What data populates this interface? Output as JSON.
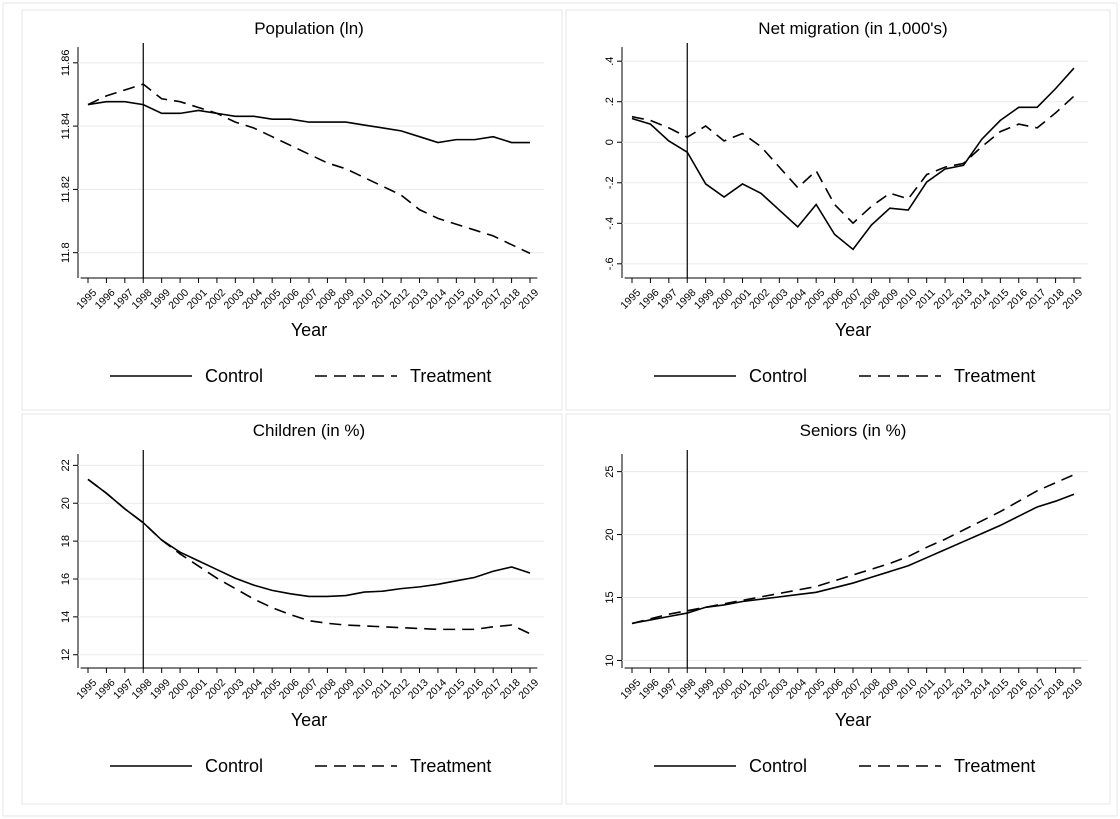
{
  "chart_data": [
    {
      "type": "line",
      "title": "Population (ln)",
      "xlabel": "Year",
      "vline": 1998,
      "x": [
        1995,
        1996,
        1997,
        1998,
        1999,
        2000,
        2001,
        2002,
        2003,
        2004,
        2005,
        2006,
        2007,
        2008,
        2009,
        2010,
        2011,
        2012,
        2013,
        2014,
        2015,
        2016,
        2017,
        2018,
        2019
      ],
      "xlim": [
        1994.6,
        2019.4
      ],
      "xticks": [
        1995,
        1996,
        1997,
        1998,
        1999,
        2000,
        2001,
        2002,
        2003,
        2004,
        2005,
        2006,
        2007,
        2008,
        2009,
        2010,
        2011,
        2012,
        2013,
        2014,
        2015,
        2016,
        2017,
        2018,
        2019
      ],
      "ylim": [
        11.792,
        11.865
      ],
      "yticks": [
        11.8,
        11.82,
        11.84,
        11.86
      ],
      "grid": true,
      "series": [
        {
          "name": "Control",
          "color": "#000000",
          "dash": "solid",
          "values": [
            11.848,
            11.849,
            11.849,
            11.848,
            11.845,
            11.845,
            11.846,
            11.845,
            11.844,
            11.844,
            11.843,
            11.843,
            11.842,
            11.842,
            11.842,
            11.841,
            11.84,
            11.839,
            11.837,
            11.835,
            11.836,
            11.836,
            11.837,
            11.835,
            11.835
          ]
        },
        {
          "name": "Treatment",
          "color": "#000000",
          "dash": "dashed",
          "values": [
            11.848,
            11.851,
            11.853,
            11.855,
            11.85,
            11.849,
            11.847,
            11.845,
            11.842,
            11.84,
            11.837,
            11.834,
            11.831,
            11.828,
            11.826,
            11.823,
            11.82,
            11.817,
            11.812,
            11.809,
            11.807,
            11.805,
            11.803,
            11.8,
            11.797
          ]
        }
      ]
    },
    {
      "type": "line",
      "title": "Net migration (in 1,000's)",
      "xlabel": "Year",
      "vline": 1998,
      "x": [
        1995,
        1996,
        1997,
        1998,
        1999,
        2000,
        2001,
        2002,
        2003,
        2004,
        2005,
        2006,
        2007,
        2008,
        2009,
        2010,
        2011,
        2012,
        2013,
        2014,
        2015,
        2016,
        2017,
        2018,
        2019
      ],
      "xlim": [
        1994.6,
        2019.4
      ],
      "xticks": [
        1995,
        1996,
        1997,
        1998,
        1999,
        2000,
        2001,
        2002,
        2003,
        2004,
        2005,
        2006,
        2007,
        2008,
        2009,
        2010,
        2011,
        2012,
        2013,
        2014,
        2015,
        2016,
        2017,
        2018,
        2019
      ],
      "ylim": [
        -0.67,
        0.47
      ],
      "yticks": [
        {
          "value": -0.6,
          "label": "-.6"
        },
        {
          "value": -0.4,
          "label": "-.4"
        },
        {
          "value": -0.2,
          "label": "-.2"
        },
        0,
        {
          "value": 0.2,
          "label": ".2"
        },
        {
          "value": 0.4,
          "label": ".4"
        }
      ],
      "grid": true,
      "series": [
        {
          "name": "Control",
          "color": "#000000",
          "dash": "solid",
          "values": [
            0.13,
            0.1,
            0.01,
            -0.05,
            -0.22,
            -0.29,
            -0.22,
            -0.27,
            -0.36,
            -0.45,
            -0.33,
            -0.49,
            -0.57,
            -0.44,
            -0.35,
            -0.36,
            -0.21,
            -0.14,
            -0.12,
            0.02,
            0.12,
            0.19,
            0.19,
            0.29,
            0.4
          ]
        },
        {
          "name": "Treatment",
          "color": "#000000",
          "dash": "dashed",
          "values": [
            0.14,
            0.12,
            0.08,
            0.03,
            0.09,
            0.01,
            0.05,
            -0.02,
            -0.13,
            -0.24,
            -0.15,
            -0.33,
            -0.43,
            -0.34,
            -0.27,
            -0.3,
            -0.17,
            -0.13,
            -0.11,
            -0.02,
            0.06,
            0.1,
            0.08,
            0.16,
            0.25
          ]
        }
      ]
    },
    {
      "type": "line",
      "title": "Children (in %)",
      "xlabel": "Year",
      "vline": 1998,
      "x": [
        1995,
        1996,
        1997,
        1998,
        1999,
        2000,
        2001,
        2002,
        2003,
        2004,
        2005,
        2006,
        2007,
        2008,
        2009,
        2010,
        2011,
        2012,
        2013,
        2014,
        2015,
        2016,
        2017,
        2018,
        2019
      ],
      "xlim": [
        1994.6,
        2019.4
      ],
      "xticks": [
        1995,
        1996,
        1997,
        1998,
        1999,
        2000,
        2001,
        2002,
        2003,
        2004,
        2005,
        2006,
        2007,
        2008,
        2009,
        2010,
        2011,
        2012,
        2013,
        2014,
        2015,
        2016,
        2017,
        2018,
        2019
      ],
      "ylim": [
        11.3,
        22.6
      ],
      "yticks": [
        12,
        14,
        16,
        18,
        20,
        22
      ],
      "grid": true,
      "series": [
        {
          "name": "Control",
          "color": "#000000",
          "dash": "solid",
          "values": [
            21.6,
            20.8,
            19.9,
            19.1,
            18.1,
            17.4,
            16.9,
            16.4,
            15.9,
            15.5,
            15.2,
            15.0,
            14.85,
            14.85,
            14.9,
            15.1,
            15.15,
            15.3,
            15.4,
            15.55,
            15.75,
            15.95,
            16.3,
            16.55,
            16.2
          ]
        },
        {
          "name": "Treatment",
          "color": "#000000",
          "dash": "dashed",
          "values": [
            21.6,
            20.8,
            19.9,
            19.1,
            18.1,
            17.3,
            16.6,
            15.9,
            15.3,
            14.7,
            14.2,
            13.8,
            13.45,
            13.3,
            13.2,
            13.15,
            13.1,
            13.05,
            13.0,
            12.95,
            12.95,
            12.95,
            13.1,
            13.2,
            12.7
          ]
        }
      ]
    },
    {
      "type": "line",
      "title": "Seniors (in %)",
      "xlabel": "Year",
      "vline": 1998,
      "x": [
        1995,
        1996,
        1997,
        1998,
        1999,
        2000,
        2001,
        2002,
        2003,
        2004,
        2005,
        2006,
        2007,
        2008,
        2009,
        2010,
        2011,
        2012,
        2013,
        2014,
        2015,
        2016,
        2017,
        2018,
        2019
      ],
      "xlim": [
        1994.6,
        2019.4
      ],
      "xticks": [
        1995,
        1996,
        1997,
        1998,
        1999,
        2000,
        2001,
        2002,
        2003,
        2004,
        2005,
        2006,
        2007,
        2008,
        2009,
        2010,
        2011,
        2012,
        2013,
        2014,
        2015,
        2016,
        2017,
        2018,
        2019
      ],
      "ylim": [
        9.4,
        26.4
      ],
      "yticks": [
        10,
        15,
        20,
        25
      ],
      "grid": true,
      "series": [
        {
          "name": "Control",
          "color": "#000000",
          "dash": "solid",
          "values": [
            12.4,
            12.7,
            13.0,
            13.3,
            13.8,
            14.0,
            14.3,
            14.5,
            14.7,
            14.9,
            15.1,
            15.5,
            15.9,
            16.4,
            16.9,
            17.4,
            18.1,
            18.8,
            19.5,
            20.2,
            20.9,
            21.7,
            22.5,
            23.0,
            23.6
          ]
        },
        {
          "name": "Treatment",
          "color": "#000000",
          "dash": "dashed",
          "values": [
            12.4,
            12.8,
            13.2,
            13.5,
            13.8,
            14.1,
            14.4,
            14.7,
            15.0,
            15.3,
            15.6,
            16.1,
            16.6,
            17.1,
            17.6,
            18.2,
            19.0,
            19.7,
            20.5,
            21.3,
            22.1,
            23.0,
            23.9,
            24.6,
            25.3
          ]
        }
      ]
    }
  ]
}
